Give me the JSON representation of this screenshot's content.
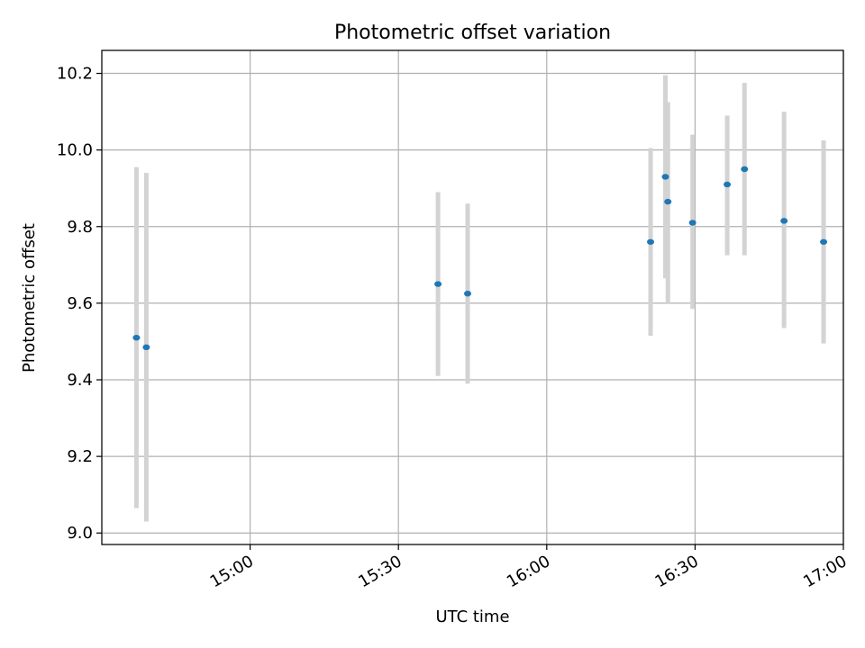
{
  "chart_data": {
    "type": "scatter",
    "title": "Photometric offset variation",
    "xlabel": "UTC time",
    "ylabel": "Photometric offset",
    "xlim": [
      "14:30",
      "17:00"
    ],
    "ylim": [
      8.97,
      10.26
    ],
    "x_ticks": [
      "15:00",
      "15:30",
      "16:00",
      "16:30",
      "17:00"
    ],
    "y_ticks": [
      9.0,
      9.2,
      9.4,
      9.6,
      9.8,
      10.0,
      10.2
    ],
    "y_tick_labels": [
      "9.0",
      "9.2",
      "9.4",
      "9.6",
      "9.8",
      "10.0",
      "10.2"
    ],
    "grid": true,
    "point_color": "#1f77b4",
    "errorbar_color": "#d3d3d3",
    "points": [
      {
        "x": "14:37",
        "y": 9.51,
        "ylow": 9.065,
        "yhigh": 9.955
      },
      {
        "x": "14:39",
        "y": 9.485,
        "ylow": 9.03,
        "yhigh": 9.94
      },
      {
        "x": "15:38",
        "y": 9.65,
        "ylow": 9.41,
        "yhigh": 9.89
      },
      {
        "x": "15:44",
        "y": 9.625,
        "ylow": 9.39,
        "yhigh": 9.86
      },
      {
        "x": "16:21",
        "y": 9.76,
        "ylow": 9.515,
        "yhigh": 10.005
      },
      {
        "x": "16:24",
        "y": 9.93,
        "ylow": 9.665,
        "yhigh": 10.195
      },
      {
        "x": "16:24.5",
        "y": 9.865,
        "ylow": 9.6,
        "yhigh": 10.125
      },
      {
        "x": "16:29.5",
        "y": 9.81,
        "ylow": 9.585,
        "yhigh": 10.04
      },
      {
        "x": "16:36.5",
        "y": 9.91,
        "ylow": 9.725,
        "yhigh": 10.09
      },
      {
        "x": "16:40",
        "y": 9.95,
        "ylow": 9.725,
        "yhigh": 10.175
      },
      {
        "x": "16:48",
        "y": 9.815,
        "ylow": 9.535,
        "yhigh": 10.1
      },
      {
        "x": "16:56",
        "y": 9.76,
        "ylow": 9.495,
        "yhigh": 10.025
      }
    ]
  }
}
